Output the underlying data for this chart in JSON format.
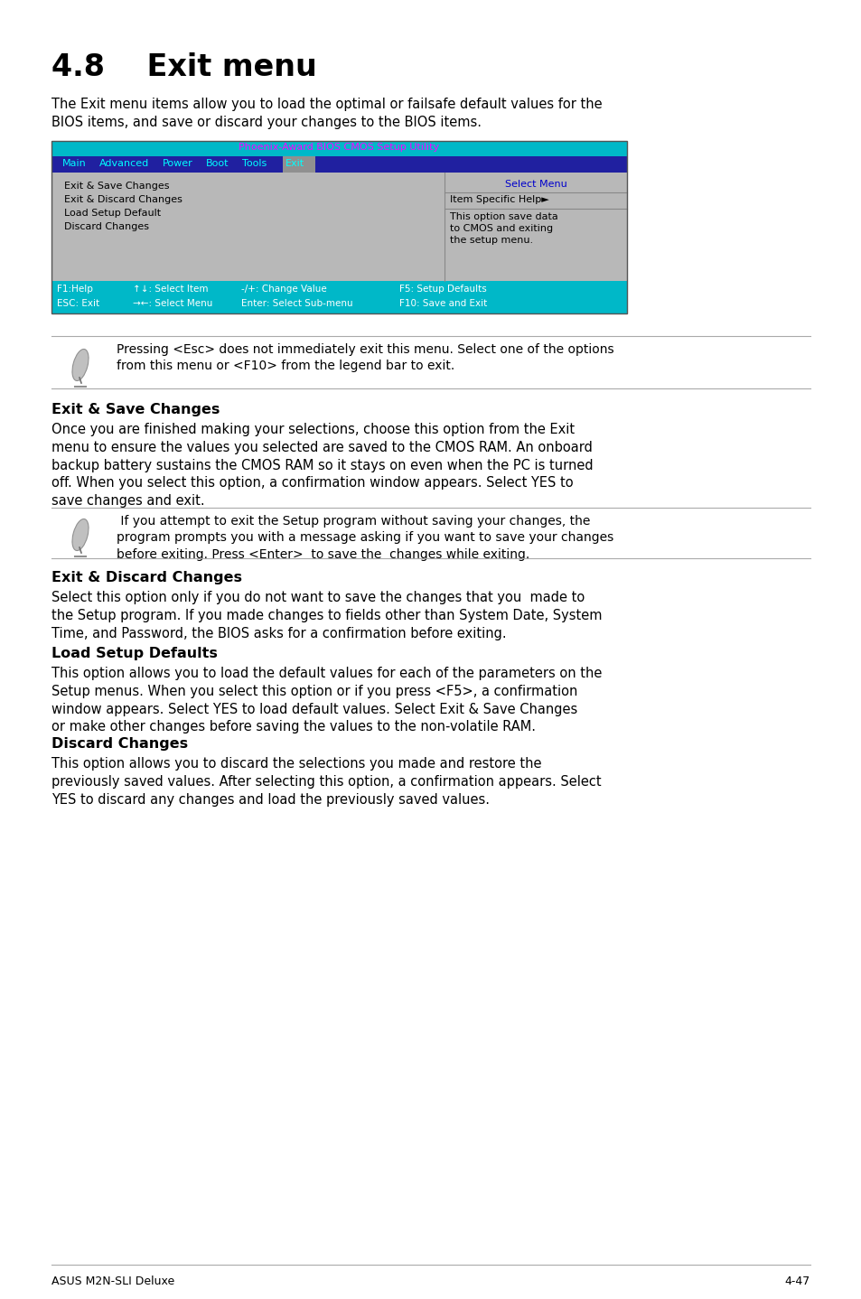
{
  "page_bg": "#ffffff",
  "title": "4.8    Exit menu",
  "intro_text": "The Exit menu items allow you to load the optimal or failsafe default values for the\nBIOS items, and save or discard your changes to the BIOS items.",
  "bios_title_bg": "#00b8c8",
  "bios_title_text": "Phoenix-Award BIOS CMOS Setup Utility",
  "bios_title_color": "#ff00ff",
  "menu_bar_bg": "#2020a0",
  "menu_items": [
    "Main",
    "Advanced",
    "Power",
    "Boot",
    "Tools",
    "Exit"
  ],
  "menu_selected": "Exit",
  "menu_selected_bg": "#909090",
  "menu_text_color": "#00ffff",
  "bios_body_bg": "#b8b8b8",
  "bios_left_items": [
    "Exit & Save Changes",
    "Exit & Discard Changes",
    "Load Setup Default",
    "Discard Changes"
  ],
  "bios_right_title": "Select Menu",
  "bios_right_title_color": "#0000cc",
  "bios_right_help_label": "Item Specific Help►",
  "bios_right_help_text": "This option save data\nto CMOS and exiting\nthe setup menu.",
  "bios_footer_bg": "#00b8c8",
  "bios_footer_col1": [
    "F1:Help",
    "ESC: Exit"
  ],
  "bios_footer_col2": [
    "↑↓: Select Item",
    "→←: Select Menu"
  ],
  "bios_footer_col3": [
    "-/+: Change Value",
    "Enter: Select Sub-menu"
  ],
  "bios_footer_col4": [
    "F5: Setup Defaults",
    "F10: Save and Exit"
  ],
  "bios_footer_text_color": "#ffffff",
  "note1_text": "Pressing <Esc> does not immediately exit this menu. Select one of the options\nfrom this menu or <F10> from the legend bar to exit.",
  "section1_title": "Exit & Save Changes",
  "section1_text": "Once you are finished making your selections, choose this option from the Exit\nmenu to ensure the values you selected are saved to the CMOS RAM. An onboard\nbackup battery sustains the CMOS RAM so it stays on even when the PC is turned\noff. When you select this option, a confirmation window appears. Select YES to\nsave changes and exit.",
  "note2_text": " If you attempt to exit the Setup program without saving your changes, the\nprogram prompts you with a message asking if you want to save your changes\nbefore exiting. Press <Enter>  to save the  changes while exiting.",
  "section2_title": "Exit & Discard Changes",
  "section2_text": "Select this option only if you do not want to save the changes that you  made to\nthe Setup program. If you made changes to fields other than System Date, System\nTime, and Password, the BIOS asks for a confirmation before exiting.",
  "section3_title": "Load Setup Defaults",
  "section3_text": "This option allows you to load the default values for each of the parameters on the\nSetup menus. When you select this option or if you press <F5>, a confirmation\nwindow appears. Select YES to load default values. Select Exit & Save Changes\nor make other changes before saving the values to the non-volatile RAM.",
  "section4_title": "Discard Changes",
  "section4_text": "This option allows you to discard the selections you made and restore the\npreviously saved values. After selecting this option, a confirmation appears. Select\nYES to discard any changes and load the previously saved values.",
  "footer_left": "ASUS M2N-SLI Deluxe",
  "footer_right": "4-47"
}
